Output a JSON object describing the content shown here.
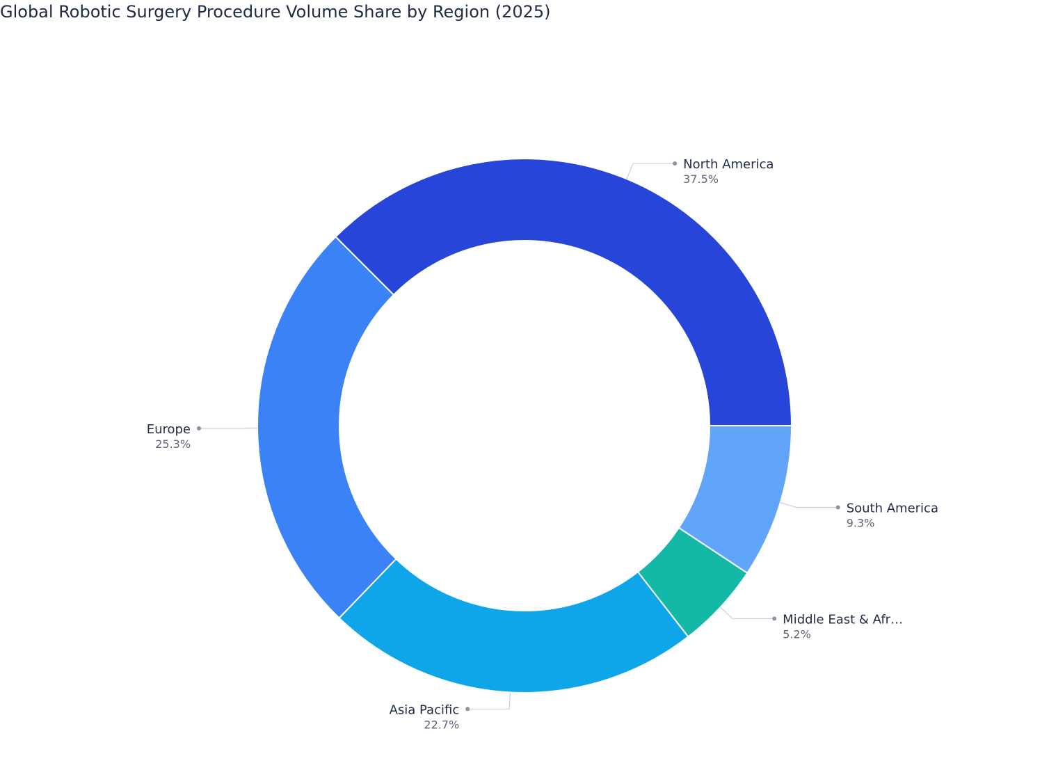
{
  "chart_data": {
    "type": "donut",
    "title": "Global Robotic Surgery Procedure Volume Share by Region (2025)",
    "categories": [
      "North America",
      "Europe",
      "Asia Pacific",
      "Middle East & Afr…",
      "South America"
    ],
    "values": [
      37.5,
      25.3,
      22.7,
      5.2,
      9.3
    ],
    "value_labels": [
      "37.5%",
      "25.3%",
      "22.7%",
      "5.2%",
      "9.3%"
    ],
    "colors": [
      "#2745d9",
      "#3b82f6",
      "#0ea5e9",
      "#14b8a6",
      "#60a5fa"
    ]
  }
}
